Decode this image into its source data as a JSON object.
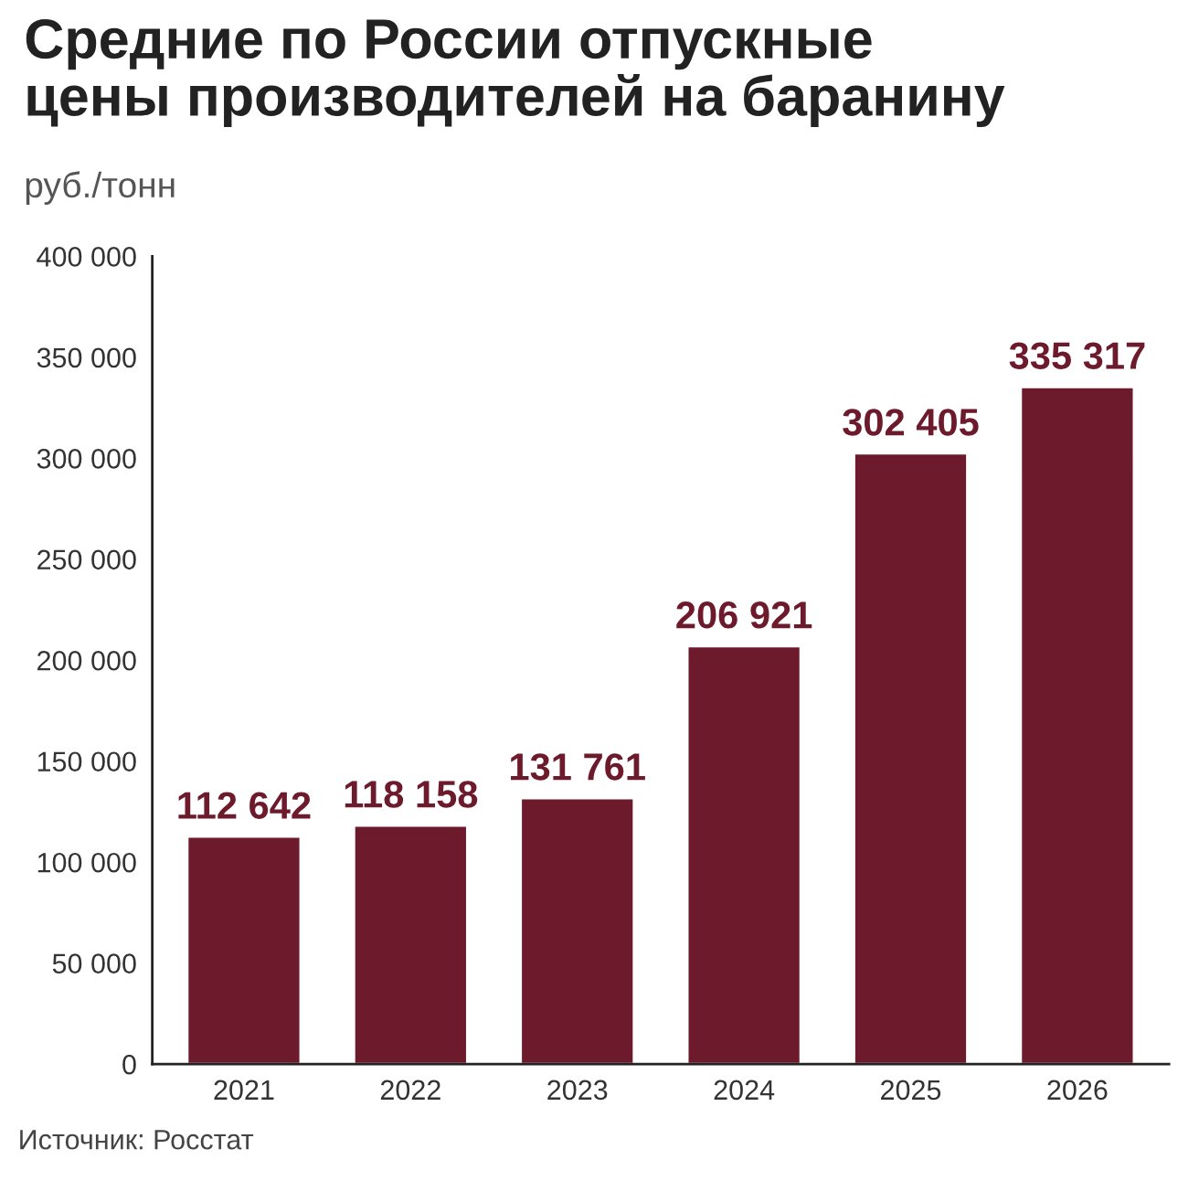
{
  "chart_data": {
    "type": "bar",
    "title": "Средние по России отпускные\nцены производителей на баранину",
    "subtitle": "руб./тонн",
    "categories": [
      "2021",
      "2022",
      "2023",
      "2024",
      "2025",
      "2026"
    ],
    "values": [
      112642,
      118158,
      131761,
      206921,
      302405,
      335317
    ],
    "value_labels": [
      "112 642",
      "118 158",
      "131 761",
      "206 921",
      "302 405",
      "335 317"
    ],
    "color": "#6d1a2c",
    "ylim": [
      0,
      400000
    ],
    "yticks": [
      0,
      {
        "value": 50000,
        "label": "50 000"
      },
      {
        "value": 100000,
        "label": "100 000"
      },
      {
        "value": 150000,
        "label": "150 000"
      },
      {
        "value": 200000,
        "label": "200 000"
      },
      {
        "value": 250000,
        "label": "250 000"
      },
      {
        "value": 300000,
        "label": "300 000"
      },
      {
        "value": 350000,
        "label": "350 000"
      },
      {
        "value": 400000,
        "label": "400 000"
      }
    ],
    "grid": false,
    "legend": false,
    "annotations": [
      "Источник: Росстат"
    ]
  }
}
